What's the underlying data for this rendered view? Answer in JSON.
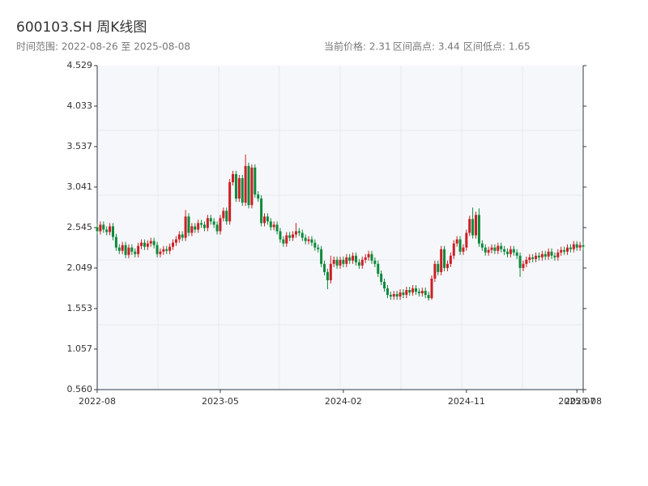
{
  "chart_data": {
    "type": "candlestick",
    "title": "600103.SH 周K线图",
    "subtitle": "时间范围: 2022-08-26 至 2025-08-08",
    "stats": [
      "当前价格: 2.31",
      "区间高点: 3.44",
      "区间低点: 1.65"
    ],
    "up_color": "#cc1f24",
    "down_color": "#0d8a3c",
    "ylim": [
      0.56,
      4.529
    ],
    "yticks": [
      {
        "value": 0.56,
        "label": "0.560"
      },
      1.057,
      1.553,
      2.049,
      2.545,
      3.041,
      3.537,
      4.033,
      4.529
    ],
    "categories": [
      "2022-08",
      null,
      null,
      null,
      null,
      null,
      null,
      null,
      null,
      null,
      null,
      null,
      null,
      null,
      null,
      null,
      null,
      null,
      null,
      null,
      null,
      null,
      null,
      null,
      null,
      null,
      null,
      null,
      null,
      null,
      null,
      null,
      null,
      null,
      null,
      null,
      null,
      null,
      null,
      "2023-05",
      null,
      null,
      null,
      null,
      null,
      null,
      null,
      null,
      null,
      null,
      null,
      null,
      null,
      null,
      null,
      null,
      null,
      null,
      null,
      null,
      null,
      null,
      null,
      null,
      null,
      null,
      null,
      null,
      null,
      null,
      null,
      null,
      null,
      null,
      null,
      null,
      null,
      null,
      "2024-02",
      null,
      null,
      null,
      null,
      null,
      null,
      null,
      null,
      null,
      null,
      null,
      null,
      null,
      null,
      null,
      null,
      null,
      null,
      null,
      null,
      null,
      null,
      null,
      null,
      null,
      null,
      null,
      null,
      null,
      null,
      null,
      null,
      null,
      null,
      null,
      null,
      null,
      null,
      "2024-11",
      null,
      null,
      null,
      null,
      null,
      null,
      null,
      null,
      null,
      null,
      null,
      null,
      null,
      null,
      null,
      null,
      null,
      null,
      null,
      null,
      null,
      null,
      null,
      null,
      null,
      null,
      null,
      null,
      null,
      null,
      null,
      null,
      null,
      null,
      "2025-07",
      null,
      "2025-08"
    ],
    "ohlc": [
      [
        2.55,
        2.59,
        2.46,
        2.5
      ],
      [
        2.5,
        2.62,
        2.46,
        2.58
      ],
      [
        2.58,
        2.62,
        2.48,
        2.52
      ],
      [
        2.52,
        2.56,
        2.45,
        2.49
      ],
      [
        2.49,
        2.6,
        2.45,
        2.56
      ],
      [
        2.56,
        2.6,
        2.39,
        2.43
      ],
      [
        2.43,
        2.47,
        2.26,
        2.3
      ],
      [
        2.3,
        2.34,
        2.22,
        2.26
      ],
      [
        2.26,
        2.37,
        2.22,
        2.33
      ],
      [
        2.33,
        2.37,
        2.17,
        2.21
      ],
      [
        2.21,
        2.34,
        2.17,
        2.3
      ],
      [
        2.3,
        2.34,
        2.21,
        2.25
      ],
      [
        2.25,
        2.29,
        2.18,
        2.22
      ],
      [
        2.22,
        2.36,
        2.18,
        2.32
      ],
      [
        2.32,
        2.4,
        2.28,
        2.36
      ],
      [
        2.36,
        2.4,
        2.27,
        2.31
      ],
      [
        2.31,
        2.39,
        2.27,
        2.35
      ],
      [
        2.35,
        2.42,
        2.31,
        2.38
      ],
      [
        2.38,
        2.42,
        2.29,
        2.33
      ],
      [
        2.33,
        2.37,
        2.18,
        2.22
      ],
      [
        2.22,
        2.29,
        2.18,
        2.25
      ],
      [
        2.25,
        2.32,
        2.21,
        2.28
      ],
      [
        2.28,
        2.32,
        2.22,
        2.26
      ],
      [
        2.26,
        2.35,
        2.22,
        2.31
      ],
      [
        2.31,
        2.4,
        2.27,
        2.36
      ],
      [
        2.36,
        2.44,
        2.32,
        2.4
      ],
      [
        2.4,
        2.5,
        2.36,
        2.46
      ],
      [
        2.46,
        2.5,
        2.38,
        2.42
      ],
      [
        2.42,
        2.76,
        2.38,
        2.68
      ],
      [
        2.68,
        2.72,
        2.44,
        2.48
      ],
      [
        2.48,
        2.6,
        2.44,
        2.56
      ],
      [
        2.56,
        2.6,
        2.48,
        2.52
      ],
      [
        2.52,
        2.64,
        2.48,
        2.6
      ],
      [
        2.6,
        2.64,
        2.54,
        2.58
      ],
      [
        2.58,
        2.62,
        2.5,
        2.54
      ],
      [
        2.54,
        2.7,
        2.5,
        2.66
      ],
      [
        2.66,
        2.7,
        2.58,
        2.62
      ],
      [
        2.62,
        2.66,
        2.54,
        2.58
      ],
      [
        2.58,
        2.62,
        2.46,
        2.5
      ],
      [
        2.5,
        2.7,
        2.46,
        2.66
      ],
      [
        2.66,
        2.79,
        2.62,
        2.75
      ],
      [
        2.75,
        2.79,
        2.58,
        2.62
      ],
      [
        2.62,
        3.14,
        2.58,
        3.1
      ],
      [
        3.1,
        3.24,
        3.06,
        3.2
      ],
      [
        3.2,
        3.24,
        2.86,
        2.9
      ],
      [
        2.9,
        3.19,
        2.86,
        3.15
      ],
      [
        3.15,
        3.19,
        2.81,
        2.85
      ],
      [
        2.85,
        3.44,
        2.81,
        3.3
      ],
      [
        3.3,
        3.34,
        2.78,
        2.82
      ],
      [
        2.82,
        3.32,
        2.78,
        3.28
      ],
      [
        3.28,
        3.32,
        2.91,
        2.95
      ],
      [
        2.95,
        2.99,
        2.86,
        2.9
      ],
      [
        2.9,
        2.94,
        2.56,
        2.6
      ],
      [
        2.6,
        2.72,
        2.56,
        2.68
      ],
      [
        2.68,
        2.72,
        2.58,
        2.62
      ],
      [
        2.62,
        2.66,
        2.51,
        2.55
      ],
      [
        2.55,
        2.62,
        2.51,
        2.58
      ],
      [
        2.58,
        2.62,
        2.46,
        2.5
      ],
      [
        2.5,
        2.54,
        2.36,
        2.4
      ],
      [
        2.4,
        2.44,
        2.31,
        2.35
      ],
      [
        2.35,
        2.49,
        2.31,
        2.45
      ],
      [
        2.45,
        2.49,
        2.38,
        2.42
      ],
      [
        2.42,
        2.5,
        2.38,
        2.46
      ],
      [
        2.46,
        2.6,
        2.42,
        2.5
      ],
      [
        2.5,
        2.54,
        2.44,
        2.48
      ],
      [
        2.48,
        2.52,
        2.38,
        2.42
      ],
      [
        2.42,
        2.46,
        2.34,
        2.38
      ],
      [
        2.38,
        2.44,
        2.34,
        2.4
      ],
      [
        2.4,
        2.44,
        2.32,
        2.36
      ],
      [
        2.36,
        2.4,
        2.26,
        2.3
      ],
      [
        2.3,
        2.34,
        2.24,
        2.28
      ],
      [
        2.28,
        2.32,
        2.06,
        2.1
      ],
      [
        2.1,
        2.14,
        1.96,
        2.0
      ],
      [
        2.0,
        2.04,
        1.79,
        1.9
      ],
      [
        1.9,
        2.2,
        1.86,
        2.1
      ],
      [
        2.1,
        2.19,
        2.06,
        2.15
      ],
      [
        2.15,
        2.19,
        2.04,
        2.08
      ],
      [
        2.08,
        2.19,
        2.04,
        2.15
      ],
      [
        2.15,
        2.19,
        2.06,
        2.1
      ],
      [
        2.1,
        2.22,
        2.06,
        2.18
      ],
      [
        2.18,
        2.22,
        2.1,
        2.14
      ],
      [
        2.14,
        2.24,
        2.1,
        2.2
      ],
      [
        2.2,
        2.24,
        2.08,
        2.12
      ],
      [
        2.12,
        2.16,
        2.04,
        2.08
      ],
      [
        2.08,
        2.19,
        2.04,
        2.15
      ],
      [
        2.15,
        2.22,
        2.11,
        2.18
      ],
      [
        2.18,
        2.26,
        2.14,
        2.22
      ],
      [
        2.22,
        2.26,
        2.1,
        2.14
      ],
      [
        2.14,
        2.18,
        2.06,
        2.1
      ],
      [
        2.1,
        2.14,
        1.94,
        1.98
      ],
      [
        1.98,
        2.02,
        1.84,
        1.88
      ],
      [
        1.88,
        1.92,
        1.76,
        1.8
      ],
      [
        1.8,
        1.84,
        1.68,
        1.72
      ],
      [
        1.72,
        1.76,
        1.66,
        1.7
      ],
      [
        1.7,
        1.77,
        1.66,
        1.73
      ],
      [
        1.73,
        1.77,
        1.66,
        1.7
      ],
      [
        1.7,
        1.79,
        1.66,
        1.75
      ],
      [
        1.75,
        1.79,
        1.68,
        1.72
      ],
      [
        1.72,
        1.82,
        1.68,
        1.78
      ],
      [
        1.78,
        1.82,
        1.71,
        1.75
      ],
      [
        1.75,
        1.84,
        1.71,
        1.8
      ],
      [
        1.8,
        1.84,
        1.72,
        1.76
      ],
      [
        1.76,
        1.8,
        1.7,
        1.74
      ],
      [
        1.74,
        1.81,
        1.7,
        1.77
      ],
      [
        1.77,
        1.81,
        1.68,
        1.72
      ],
      [
        1.72,
        1.76,
        1.65,
        1.68
      ],
      [
        1.68,
        1.96,
        1.66,
        1.92
      ],
      [
        1.92,
        2.14,
        1.88,
        2.1
      ],
      [
        2.1,
        2.14,
        1.96,
        2.0
      ],
      [
        2.0,
        2.32,
        1.96,
        2.28
      ],
      [
        2.28,
        2.32,
        2.01,
        2.05
      ],
      [
        2.05,
        2.14,
        2.01,
        2.1
      ],
      [
        2.1,
        2.24,
        2.06,
        2.2
      ],
      [
        2.2,
        2.39,
        2.16,
        2.35
      ],
      [
        2.35,
        2.44,
        2.31,
        2.4
      ],
      [
        2.4,
        2.44,
        2.21,
        2.25
      ],
      [
        2.25,
        2.34,
        2.21,
        2.3
      ],
      [
        2.3,
        2.52,
        2.26,
        2.48
      ],
      [
        2.48,
        2.69,
        2.44,
        2.65
      ],
      [
        2.65,
        2.79,
        2.41,
        2.45
      ],
      [
        2.45,
        2.74,
        2.41,
        2.7
      ],
      [
        2.7,
        2.78,
        2.31,
        2.35
      ],
      [
        2.35,
        2.39,
        2.26,
        2.3
      ],
      [
        2.3,
        2.34,
        2.2,
        2.24
      ],
      [
        2.24,
        2.31,
        2.2,
        2.27
      ],
      [
        2.27,
        2.34,
        2.23,
        2.3
      ],
      [
        2.3,
        2.34,
        2.22,
        2.26
      ],
      [
        2.26,
        2.36,
        2.22,
        2.32
      ],
      [
        2.32,
        2.36,
        2.24,
        2.28
      ],
      [
        2.28,
        2.32,
        2.21,
        2.25
      ],
      [
        2.25,
        2.29,
        2.18,
        2.22
      ],
      [
        2.22,
        2.32,
        2.18,
        2.28
      ],
      [
        2.28,
        2.32,
        2.2,
        2.24
      ],
      [
        2.24,
        2.28,
        2.16,
        2.2
      ],
      [
        2.2,
        2.24,
        1.94,
        2.05
      ],
      [
        2.05,
        2.14,
        2.01,
        2.1
      ],
      [
        2.1,
        2.19,
        2.06,
        2.15
      ],
      [
        2.15,
        2.22,
        2.11,
        2.18
      ],
      [
        2.18,
        2.22,
        2.12,
        2.16
      ],
      [
        2.16,
        2.24,
        2.12,
        2.2
      ],
      [
        2.2,
        2.24,
        2.14,
        2.18
      ],
      [
        2.18,
        2.26,
        2.14,
        2.22
      ],
      [
        2.22,
        2.26,
        2.15,
        2.19
      ],
      [
        2.19,
        2.29,
        2.15,
        2.25
      ],
      [
        2.25,
        2.29,
        2.16,
        2.2
      ],
      [
        2.2,
        2.24,
        2.14,
        2.18
      ],
      [
        2.18,
        2.28,
        2.14,
        2.24
      ],
      [
        2.24,
        2.31,
        2.2,
        2.27
      ],
      [
        2.27,
        2.31,
        2.21,
        2.25
      ],
      [
        2.25,
        2.34,
        2.21,
        2.3
      ],
      [
        2.3,
        2.34,
        2.24,
        2.28
      ],
      [
        2.28,
        2.38,
        2.24,
        2.34
      ],
      [
        2.34,
        2.38,
        2.26,
        2.3
      ],
      [
        2.3,
        2.37,
        2.26,
        2.33
      ],
      [
        2.33,
        2.37,
        2.27,
        2.31
      ]
    ]
  }
}
